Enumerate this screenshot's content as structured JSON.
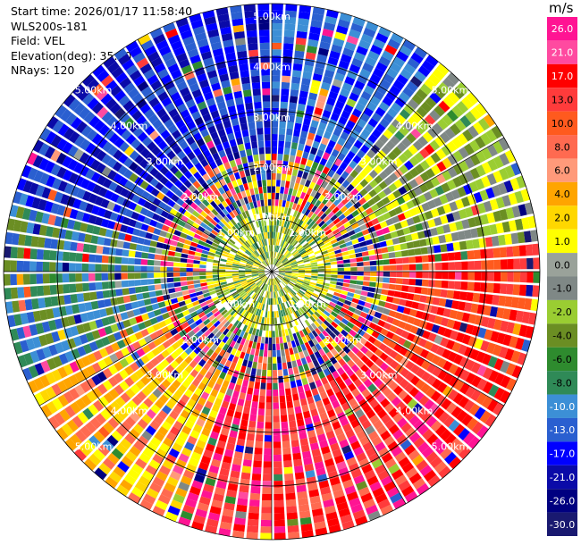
{
  "header": {
    "start_time": "Start time: 2026/01/17 11:58:40",
    "station": "WLS200s-181",
    "field": "Field: VEL",
    "elevation": "Elevation(deg): 35.00",
    "nrays": "NRays: 120"
  },
  "ppi": {
    "n_rays": 120,
    "max_range_km": 5.0,
    "ring_labels": [
      {
        "text": "1.00km",
        "range_km": 1.0
      },
      {
        "text": "2.00km",
        "range_km": 2.0
      },
      {
        "text": "3.00km",
        "range_km": 3.0
      },
      {
        "text": "4.00km",
        "range_km": 4.0
      },
      {
        "text": "5.00km",
        "range_km": 5.0
      }
    ]
  },
  "colorbar": {
    "title": "m/s",
    "ticks": [
      "26.0",
      "21.0",
      "17.0",
      "13.0",
      "10.0",
      "8.0",
      "6.0",
      "4.0",
      "2.0",
      "1.0",
      "0.0",
      "-1.0",
      "-2.0",
      "-4.0",
      "-6.0",
      "-8.0",
      "-10.0",
      "-13.0",
      "-17.0",
      "-21.0",
      "-26.0",
      "-30.0"
    ],
    "colors": [
      "#ff1493",
      "#ff4aa0",
      "#ff0000",
      "#ff3b3b",
      "#ff5a1e",
      "#ff6a50",
      "#ff9a7a",
      "#ffa500",
      "#ffd700",
      "#ffff00",
      "#9aa29a",
      "#7f8886",
      "#9acd32",
      "#6b8e23",
      "#2e8b2e",
      "#2f8a57",
      "#3c8fd6",
      "#2a5fd0",
      "#0000ff",
      "#0a0aa8",
      "#000080",
      "#191970"
    ]
  },
  "sector_pattern": [
    {
      "from_deg": 0,
      "to_deg": 40,
      "colors": [
        "#0000ff",
        "#2a5fd0",
        "#3c8fd6"
      ]
    },
    {
      "from_deg": 40,
      "to_deg": 85,
      "colors": [
        "#9acd32",
        "#6b8e23",
        "#7f8886",
        "#ffff00"
      ]
    },
    {
      "from_deg": 85,
      "to_deg": 130,
      "colors": [
        "#ff5a1e",
        "#ff0000",
        "#ff3b3b"
      ]
    },
    {
      "from_deg": 130,
      "to_deg": 200,
      "colors": [
        "#ff0000",
        "#ff3b3b",
        "#ff1493",
        "#ff6a50"
      ]
    },
    {
      "from_deg": 200,
      "to_deg": 245,
      "colors": [
        "#ff6a50",
        "#ffa500",
        "#ffd700",
        "#ffff00"
      ]
    },
    {
      "from_deg": 245,
      "to_deg": 285,
      "colors": [
        "#2f8a57",
        "#6b8e23",
        "#2a5fd0",
        "#3c8fd6"
      ]
    },
    {
      "from_deg": 285,
      "to_deg": 360,
      "colors": [
        "#0000ff",
        "#0a0aa8",
        "#2a5fd0"
      ]
    }
  ]
}
